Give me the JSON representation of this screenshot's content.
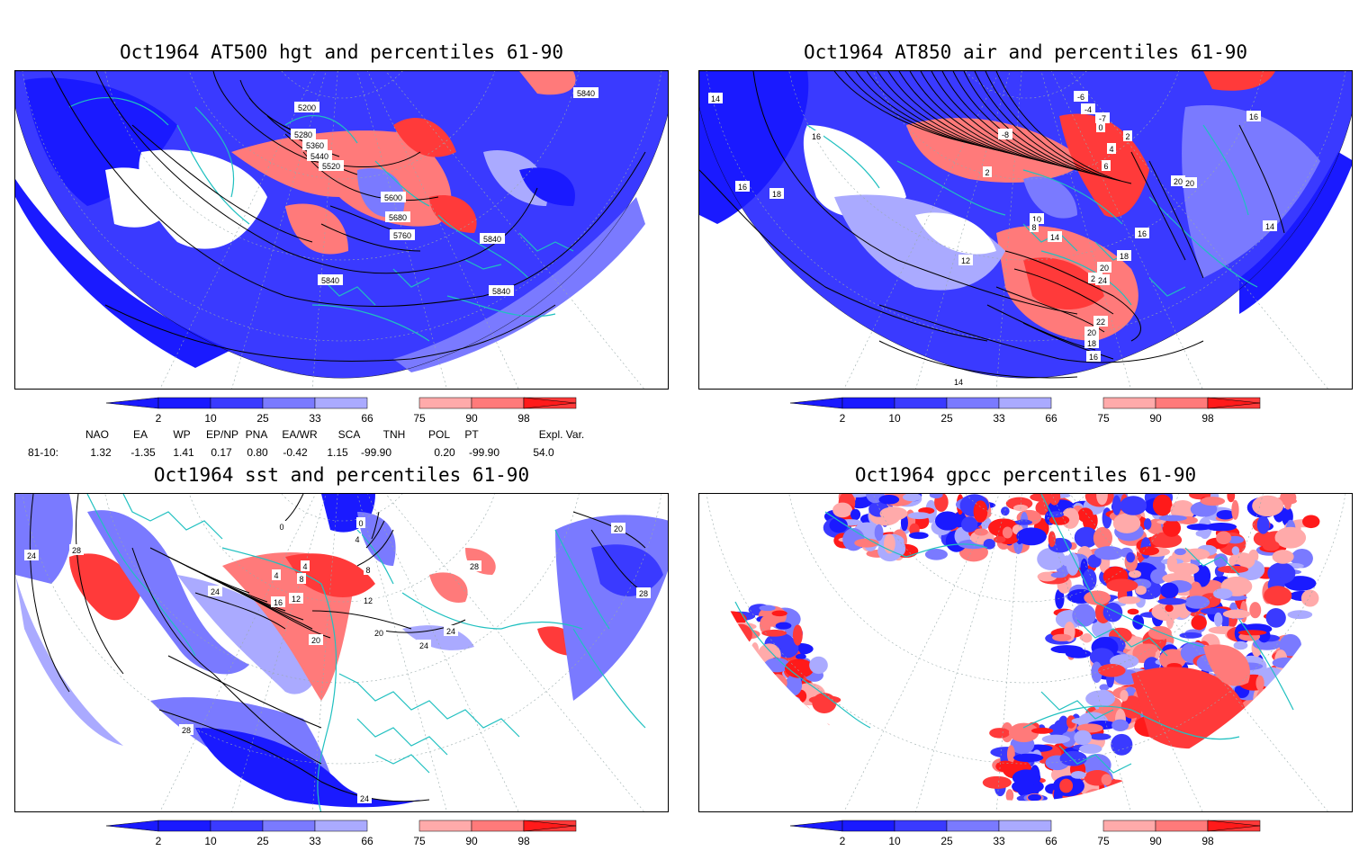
{
  "panels": [
    {
      "id": "p1",
      "title": "Oct1964 AT500 hgt and percentiles 61-90",
      "contour_labels": [
        "5200",
        "5280",
        "5360",
        "5440",
        "5520",
        "5600",
        "5680",
        "5760",
        "5840",
        "5840",
        "5840",
        "5840"
      ]
    },
    {
      "id": "p2",
      "title": "Oct1964 AT850 air and percentiles 61-90",
      "contour_labels": [
        "14",
        "16",
        "16",
        "18",
        "12",
        "10",
        "8",
        "14",
        "16",
        "18",
        "20",
        "22",
        "24",
        "22",
        "20",
        "18",
        "16",
        "14",
        "20",
        "20",
        "2",
        "4",
        "6",
        "-6",
        "-4",
        "-7",
        "0",
        "2",
        "-8",
        "14",
        "16"
      ]
    },
    {
      "id": "p3",
      "title": "Oct1964 sst and percentiles 61-90",
      "contour_labels": [
        "24",
        "28",
        "24",
        "28",
        "24",
        "16",
        "12",
        "8",
        "4",
        "4",
        "0",
        "20",
        "20",
        "24",
        "24",
        "28",
        "28",
        "20",
        "12",
        "8",
        "4",
        "0"
      ]
    },
    {
      "id": "p4",
      "title": "Oct1964 gpcc percentiles 61-90",
      "contour_labels": []
    }
  ],
  "colorbar": {
    "labels": [
      "2",
      "10",
      "25",
      "33",
      "66",
      "75",
      "90",
      "98"
    ],
    "colors": {
      "p2": "#1a1aff",
      "p10": "#3a3aff",
      "p25": "#7a7aff",
      "p33": "#aaaaff",
      "p66": "#ffaaaa",
      "p75": "#ff7a7a",
      "p90": "#ff3a3a",
      "p98": "#ff1a1a",
      "ocean": "#2020ff",
      "map_line": "#20c0c0",
      "contour": "#000000"
    }
  },
  "indices": {
    "headers": [
      "NAO",
      "EA",
      "WP",
      "EP/NP",
      "PNA",
      "EA/WR",
      "SCA",
      "TNH",
      "POL",
      "PT",
      "Expl. Var."
    ],
    "row_label": "81-10:",
    "values": [
      "1.32",
      "-1.35",
      "1.41",
      "0.17",
      "0.80",
      "-0.42",
      "1.15",
      "-99.90",
      "0.20",
      "-99.90",
      "54.0"
    ]
  }
}
